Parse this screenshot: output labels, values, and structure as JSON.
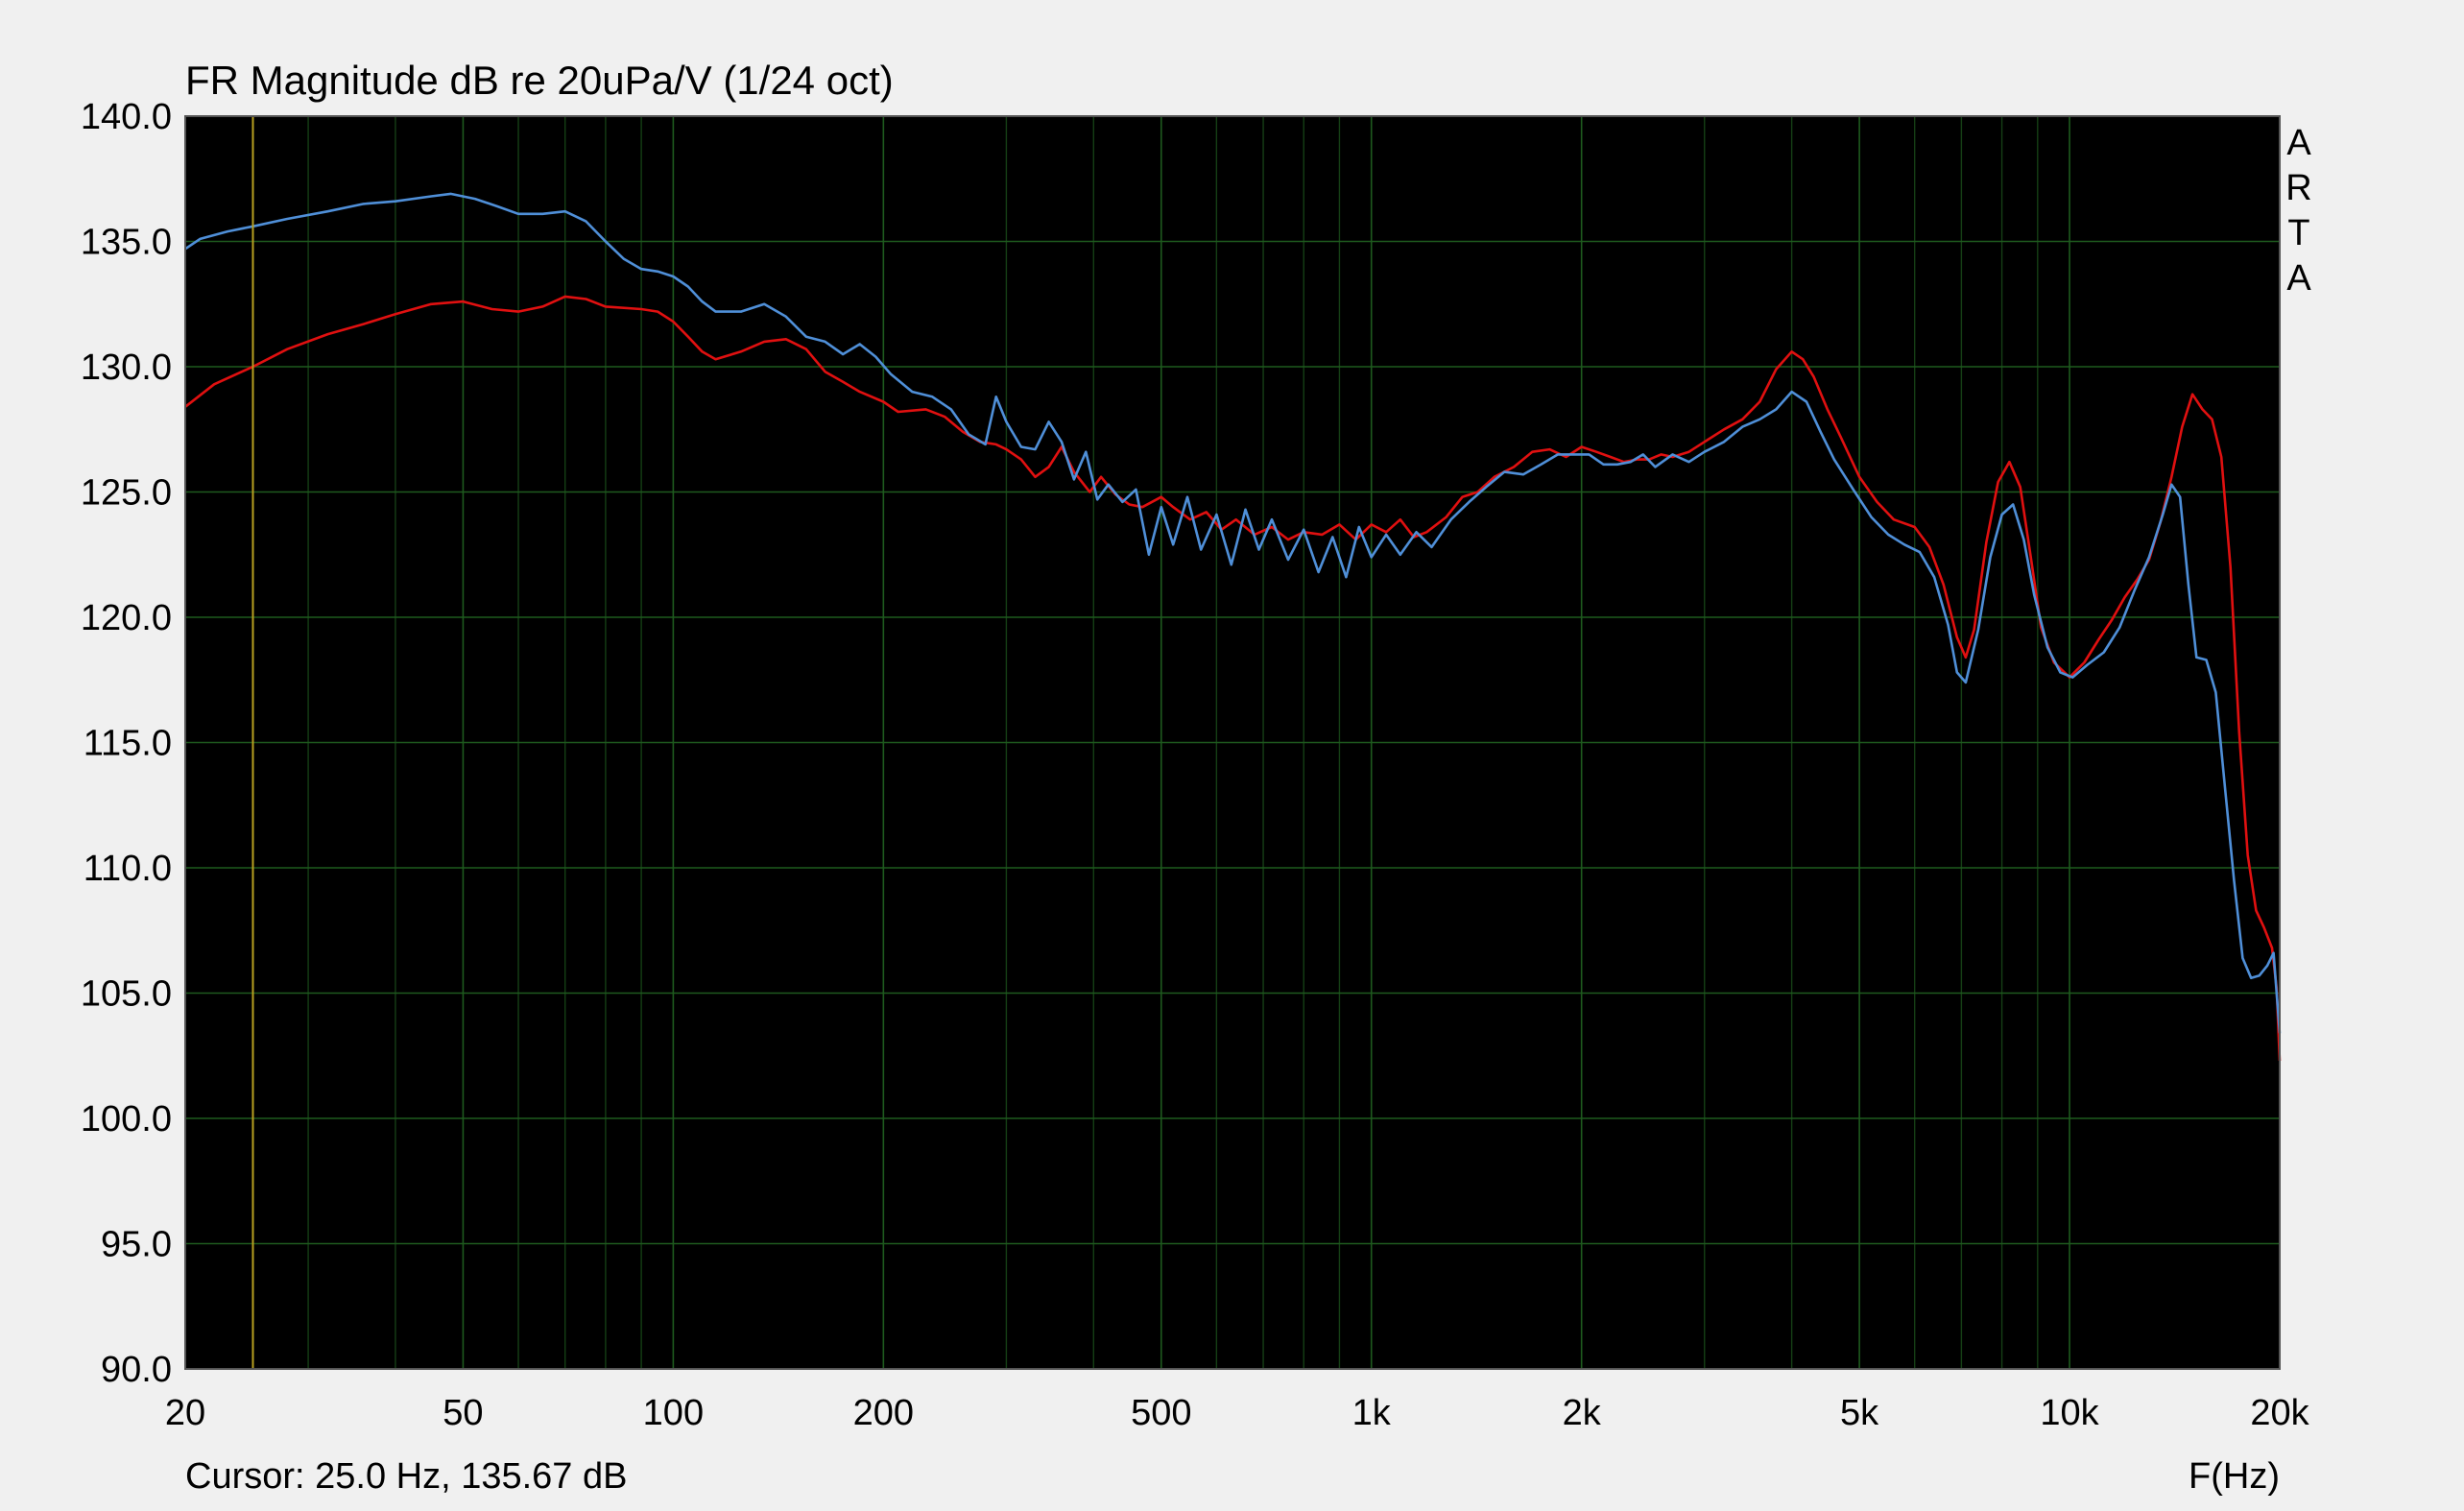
{
  "chart_data": {
    "type": "line",
    "title": "FR Magnitude dB re 20uPa/V (1/24 oct)",
    "xlabel": "F(Hz)",
    "x_scale": "log",
    "xlim": [
      20,
      20000
    ],
    "ylim": [
      90,
      140
    ],
    "grid": true,
    "background": "#000000",
    "grid_color": "#1e5a1e",
    "x_ticks": [
      20,
      50,
      100,
      200,
      500,
      1000,
      2000,
      5000,
      10000,
      20000
    ],
    "x_tick_labels": [
      "20",
      "50",
      "100",
      "200",
      "500",
      "1k",
      "2k",
      "5k",
      "10k",
      "20k"
    ],
    "x_minor_grid": [
      30,
      40,
      60,
      70,
      80,
      90,
      300,
      400,
      600,
      700,
      800,
      900,
      3000,
      4000,
      6000,
      7000,
      8000,
      9000
    ],
    "y_ticks": [
      90,
      95,
      100,
      105,
      110,
      115,
      120,
      125,
      130,
      135,
      140
    ],
    "y_tick_labels": [
      "90.0",
      "95.0",
      "100.0",
      "105.0",
      "110.0",
      "115.0",
      "120.0",
      "125.0",
      "130.0",
      "135.0",
      "140.0"
    ],
    "side_label": [
      "A",
      "R",
      "T",
      "A"
    ],
    "cursor": {
      "x": 25.0,
      "color": "#b8a020",
      "readout": "Cursor: 25.0 Hz, 135.67 dB"
    },
    "series": [
      {
        "color": "#e01010",
        "points": [
          [
            20,
            128.4
          ],
          [
            22,
            129.3
          ],
          [
            25,
            130.0
          ],
          [
            28,
            130.7
          ],
          [
            32,
            131.3
          ],
          [
            36,
            131.7
          ],
          [
            40,
            132.1
          ],
          [
            45,
            132.5
          ],
          [
            50,
            132.6
          ],
          [
            55,
            132.3
          ],
          [
            60,
            132.2
          ],
          [
            65,
            132.4
          ],
          [
            70,
            132.8
          ],
          [
            75,
            132.7
          ],
          [
            80,
            132.4
          ],
          [
            90,
            132.3
          ],
          [
            95,
            132.2
          ],
          [
            100,
            131.8
          ],
          [
            105,
            131.2
          ],
          [
            110,
            130.6
          ],
          [
            115,
            130.3
          ],
          [
            125,
            130.6
          ],
          [
            135,
            131.0
          ],
          [
            145,
            131.1
          ],
          [
            155,
            130.7
          ],
          [
            165,
            129.8
          ],
          [
            175,
            129.4
          ],
          [
            185,
            129.0
          ],
          [
            200,
            128.6
          ],
          [
            210,
            128.2
          ],
          [
            230,
            128.3
          ],
          [
            245,
            128.0
          ],
          [
            260,
            127.4
          ],
          [
            275,
            127.0
          ],
          [
            290,
            126.9
          ],
          [
            300,
            126.7
          ],
          [
            315,
            126.3
          ],
          [
            330,
            125.6
          ],
          [
            345,
            126.0
          ],
          [
            360,
            126.8
          ],
          [
            375,
            125.8
          ],
          [
            395,
            125.0
          ],
          [
            410,
            125.6
          ],
          [
            430,
            124.9
          ],
          [
            450,
            124.5
          ],
          [
            470,
            124.4
          ],
          [
            500,
            124.8
          ],
          [
            520,
            124.4
          ],
          [
            550,
            123.9
          ],
          [
            580,
            124.2
          ],
          [
            610,
            123.5
          ],
          [
            640,
            123.9
          ],
          [
            680,
            123.3
          ],
          [
            720,
            123.6
          ],
          [
            760,
            123.1
          ],
          [
            800,
            123.4
          ],
          [
            850,
            123.3
          ],
          [
            900,
            123.7
          ],
          [
            950,
            123.1
          ],
          [
            1000,
            123.7
          ],
          [
            1050,
            123.4
          ],
          [
            1100,
            123.9
          ],
          [
            1150,
            123.2
          ],
          [
            1200,
            123.4
          ],
          [
            1280,
            124.0
          ],
          [
            1350,
            124.8
          ],
          [
            1420,
            125.0
          ],
          [
            1500,
            125.6
          ],
          [
            1600,
            126.0
          ],
          [
            1700,
            126.6
          ],
          [
            1800,
            126.7
          ],
          [
            1900,
            126.4
          ],
          [
            2000,
            126.8
          ],
          [
            2100,
            126.6
          ],
          [
            2200,
            126.4
          ],
          [
            2300,
            126.2
          ],
          [
            2400,
            126.3
          ],
          [
            2500,
            126.3
          ],
          [
            2600,
            126.5
          ],
          [
            2700,
            126.4
          ],
          [
            2850,
            126.6
          ],
          [
            3000,
            127.0
          ],
          [
            3200,
            127.5
          ],
          [
            3400,
            127.9
          ],
          [
            3600,
            128.6
          ],
          [
            3800,
            129.9
          ],
          [
            4000,
            130.6
          ],
          [
            4150,
            130.3
          ],
          [
            4300,
            129.6
          ],
          [
            4500,
            128.3
          ],
          [
            4700,
            127.2
          ],
          [
            5000,
            125.6
          ],
          [
            5300,
            124.6
          ],
          [
            5600,
            123.9
          ],
          [
            6000,
            123.6
          ],
          [
            6300,
            122.8
          ],
          [
            6600,
            121.3
          ],
          [
            6900,
            119.2
          ],
          [
            7100,
            118.4
          ],
          [
            7300,
            119.5
          ],
          [
            7600,
            123.0
          ],
          [
            7900,
            125.4
          ],
          [
            8200,
            126.2
          ],
          [
            8500,
            125.2
          ],
          [
            8800,
            122.4
          ],
          [
            9100,
            119.6
          ],
          [
            9500,
            118.2
          ],
          [
            10000,
            117.6
          ],
          [
            10500,
            118.2
          ],
          [
            11000,
            119.1
          ],
          [
            11500,
            119.9
          ],
          [
            12000,
            120.8
          ],
          [
            12500,
            121.5
          ],
          [
            13000,
            122.3
          ],
          [
            13500,
            123.8
          ],
          [
            14000,
            125.6
          ],
          [
            14500,
            127.6
          ],
          [
            15000,
            128.9
          ],
          [
            15500,
            128.3
          ],
          [
            16000,
            127.9
          ],
          [
            16500,
            126.4
          ],
          [
            17000,
            122.0
          ],
          [
            17500,
            115.4
          ],
          [
            18000,
            110.5
          ],
          [
            18500,
            108.3
          ],
          [
            19000,
            107.6
          ],
          [
            19500,
            106.8
          ],
          [
            19800,
            105.2
          ],
          [
            20000,
            102.3
          ]
        ]
      },
      {
        "color": "#4f8fd8",
        "points": [
          [
            20,
            134.7
          ],
          [
            21,
            135.1
          ],
          [
            23,
            135.4
          ],
          [
            25,
            135.6
          ],
          [
            28,
            135.9
          ],
          [
            32,
            136.2
          ],
          [
            36,
            136.5
          ],
          [
            40,
            136.6
          ],
          [
            45,
            136.8
          ],
          [
            48,
            136.9
          ],
          [
            52,
            136.7
          ],
          [
            56,
            136.4
          ],
          [
            60,
            136.1
          ],
          [
            65,
            136.1
          ],
          [
            70,
            136.2
          ],
          [
            75,
            135.8
          ],
          [
            80,
            135.0
          ],
          [
            85,
            134.3
          ],
          [
            90,
            133.9
          ],
          [
            95,
            133.8
          ],
          [
            100,
            133.6
          ],
          [
            105,
            133.2
          ],
          [
            110,
            132.6
          ],
          [
            115,
            132.2
          ],
          [
            125,
            132.2
          ],
          [
            135,
            132.5
          ],
          [
            145,
            132.0
          ],
          [
            155,
            131.2
          ],
          [
            165,
            131.0
          ],
          [
            175,
            130.5
          ],
          [
            185,
            130.9
          ],
          [
            195,
            130.4
          ],
          [
            205,
            129.7
          ],
          [
            220,
            129.0
          ],
          [
            235,
            128.8
          ],
          [
            250,
            128.3
          ],
          [
            265,
            127.3
          ],
          [
            280,
            126.9
          ],
          [
            290,
            128.8
          ],
          [
            300,
            127.8
          ],
          [
            315,
            126.8
          ],
          [
            330,
            126.7
          ],
          [
            345,
            127.8
          ],
          [
            360,
            127.0
          ],
          [
            375,
            125.5
          ],
          [
            390,
            126.6
          ],
          [
            405,
            124.7
          ],
          [
            420,
            125.3
          ],
          [
            440,
            124.6
          ],
          [
            460,
            125.1
          ],
          [
            480,
            122.5
          ],
          [
            500,
            124.4
          ],
          [
            520,
            122.9
          ],
          [
            545,
            124.8
          ],
          [
            570,
            122.7
          ],
          [
            600,
            124.1
          ],
          [
            630,
            122.1
          ],
          [
            660,
            124.3
          ],
          [
            690,
            122.7
          ],
          [
            720,
            123.9
          ],
          [
            760,
            122.3
          ],
          [
            800,
            123.5
          ],
          [
            840,
            121.8
          ],
          [
            880,
            123.2
          ],
          [
            920,
            121.6
          ],
          [
            960,
            123.6
          ],
          [
            1000,
            122.4
          ],
          [
            1050,
            123.3
          ],
          [
            1100,
            122.5
          ],
          [
            1160,
            123.4
          ],
          [
            1220,
            122.8
          ],
          [
            1300,
            123.9
          ],
          [
            1380,
            124.6
          ],
          [
            1460,
            125.2
          ],
          [
            1550,
            125.8
          ],
          [
            1650,
            125.7
          ],
          [
            1750,
            126.1
          ],
          [
            1850,
            126.5
          ],
          [
            1950,
            126.5
          ],
          [
            2050,
            126.5
          ],
          [
            2150,
            126.1
          ],
          [
            2250,
            126.1
          ],
          [
            2350,
            126.2
          ],
          [
            2450,
            126.5
          ],
          [
            2550,
            126.0
          ],
          [
            2700,
            126.5
          ],
          [
            2850,
            126.2
          ],
          [
            3000,
            126.6
          ],
          [
            3200,
            127.0
          ],
          [
            3400,
            127.6
          ],
          [
            3600,
            127.9
          ],
          [
            3800,
            128.3
          ],
          [
            4000,
            129.0
          ],
          [
            4200,
            128.6
          ],
          [
            4400,
            127.4
          ],
          [
            4600,
            126.3
          ],
          [
            4900,
            125.1
          ],
          [
            5200,
            124.0
          ],
          [
            5500,
            123.3
          ],
          [
            5800,
            122.9
          ],
          [
            6100,
            122.6
          ],
          [
            6400,
            121.6
          ],
          [
            6700,
            119.7
          ],
          [
            6900,
            117.8
          ],
          [
            7100,
            117.4
          ],
          [
            7400,
            119.5
          ],
          [
            7700,
            122.4
          ],
          [
            8000,
            124.1
          ],
          [
            8300,
            124.5
          ],
          [
            8600,
            123.1
          ],
          [
            8900,
            120.9
          ],
          [
            9300,
            118.8
          ],
          [
            9700,
            117.8
          ],
          [
            10100,
            117.6
          ],
          [
            10600,
            118.1
          ],
          [
            11200,
            118.6
          ],
          [
            11800,
            119.6
          ],
          [
            12400,
            121.1
          ],
          [
            13000,
            122.4
          ],
          [
            13600,
            124.1
          ],
          [
            14000,
            125.3
          ],
          [
            14400,
            124.8
          ],
          [
            14800,
            121.3
          ],
          [
            15200,
            118.4
          ],
          [
            15700,
            118.3
          ],
          [
            16200,
            117.0
          ],
          [
            16700,
            113.2
          ],
          [
            17200,
            109.5
          ],
          [
            17700,
            106.4
          ],
          [
            18200,
            105.6
          ],
          [
            18700,
            105.7
          ],
          [
            19200,
            106.1
          ],
          [
            19600,
            106.6
          ],
          [
            20000,
            103.4
          ]
        ]
      }
    ]
  }
}
